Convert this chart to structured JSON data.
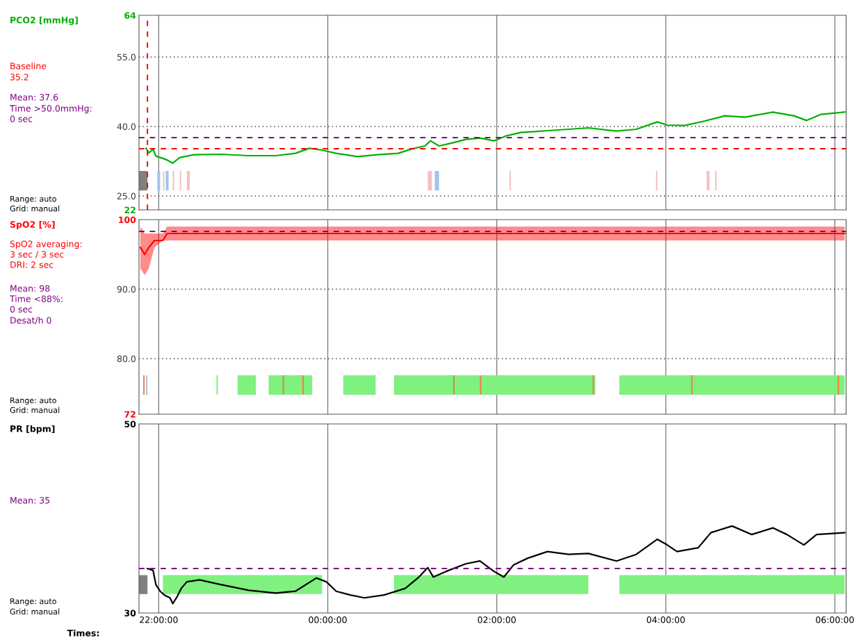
{
  "chart_data": [
    {
      "type": "line",
      "ylabel": "PCO2 [mmHg]",
      "annotations": [
        "Baseline",
        "35.2",
        "Mean: 37.6",
        "Time >50.0mmHg:",
        "0 sec",
        "Range: auto",
        "Grid: manual"
      ],
      "series": [
        {
          "color": "#00b000",
          "x": [
            "2000-01-01T21:51",
            "2000-01-01T21:53",
            "2000-01-01T21:56",
            "2000-01-01T21:58",
            "2000-01-01T22:01",
            "2000-01-01T22:05",
            "2000-01-01T22:10",
            "2000-01-01T22:15",
            "2000-01-01T22:25",
            "2000-01-01T22:44",
            "2000-01-01T23:04",
            "2000-01-01T23:23",
            "2000-01-01T23:37",
            "2000-01-01T23:47",
            "2000-01-01T23:56",
            "2000-01-02T00:06",
            "2000-01-02T00:21",
            "2000-01-02T00:35",
            "2000-01-02T00:50",
            "2000-01-02T00:59",
            "2000-01-02T01:09",
            "2000-01-02T01:13",
            "2000-01-02T01:19",
            "2000-01-02T01:29",
            "2000-01-02T01:38",
            "2000-01-02T01:48",
            "2000-01-02T01:58",
            "2000-01-02T02:07",
            "2000-01-02T02:17",
            "2000-01-02T02:36",
            "2000-01-02T02:51",
            "2000-01-02T03:05",
            "2000-01-02T03:25",
            "2000-01-02T03:39",
            "2000-01-02T03:54",
            "2000-01-02T04:01",
            "2000-01-02T04:13",
            "2000-01-02T04:28",
            "2000-01-02T04:42",
            "2000-01-02T04:56",
            "2000-01-02T05:16",
            "2000-01-02T05:31",
            "2000-01-02T05:40",
            "2000-01-02T05:50",
            "2000-01-02T06:07"
          ],
          "values": [
            35.3,
            34.3,
            35.1,
            33.6,
            33.3,
            32.9,
            32.1,
            33.3,
            33.9,
            34.0,
            33.7,
            33.7,
            34.2,
            35.3,
            34.9,
            34.2,
            33.5,
            33.9,
            34.2,
            35.1,
            35.8,
            36.9,
            35.8,
            36.5,
            37.2,
            37.5,
            36.9,
            38.0,
            38.7,
            39.1,
            39.4,
            39.7,
            39.0,
            39.4,
            41.0,
            40.3,
            40.2,
            41.2,
            42.3,
            42.0,
            43.1,
            42.3,
            41.3,
            42.6,
            43.1
          ]
        }
      ],
      "xlim": [
        "2000-01-01T21:46",
        "2000-01-02T06:08"
      ],
      "ylim": [
        22,
        64
      ],
      "xticks": [
        {
          "value": "2000-01-01T22:00",
          "label": null
        },
        {
          "value": "2000-01-02T00:00",
          "label": null
        },
        {
          "value": "2000-01-02T02:00",
          "label": null
        },
        {
          "value": "2000-01-02T04:00",
          "label": null
        },
        {
          "value": "2000-01-02T06:00",
          "label": null
        }
      ],
      "yticks": [
        22,
        {
          "value": 25,
          "label": "25.0"
        },
        {
          "value": 40,
          "label": "40.0"
        },
        {
          "value": 55,
          "label": "55.0"
        },
        64
      ],
      "tick_labels": "y",
      "grid": true,
      "ref_lines": [
        {
          "axis": "y",
          "value": 35.2,
          "color": "#ff0000",
          "line_style": "dashed"
        },
        {
          "axis": "y",
          "value": 37.6,
          "color": "#800080",
          "line_style": "dashed"
        },
        {
          "axis": "x",
          "value": "2000-01-01T21:52",
          "color": "#ff0000",
          "line_style": "dashed"
        }
      ],
      "bands": [
        {
          "axis": "x",
          "from": "2000-01-01T21:46",
          "to": "2000-01-01T21:52",
          "color": "#808080"
        },
        {
          "axis": "x",
          "from": "2000-01-01T21:59",
          "to": "2000-01-01T22:01",
          "color": "#a0c4f0"
        },
        {
          "axis": "x",
          "from": "2000-01-01T22:03",
          "to": "2000-01-01T22:04",
          "color": "#f4c0c0"
        },
        {
          "axis": "x",
          "from": "2000-01-01T22:05",
          "to": "2000-01-01T22:07",
          "color": "#a0c4f0"
        },
        {
          "axis": "x",
          "from": "2000-01-01T22:10",
          "to": "2000-01-01T22:11",
          "color": "#f4c0c0"
        },
        {
          "axis": "x",
          "from": "2000-01-01T22:15",
          "to": "2000-01-01T22:16",
          "color": "#f4c0c0"
        },
        {
          "axis": "x",
          "from": "2000-01-01T22:20",
          "to": "2000-01-01T22:22",
          "color": "#f4c0c0"
        },
        {
          "axis": "x",
          "from": "2000-01-02T01:11",
          "to": "2000-01-02T01:14",
          "color": "#f4c0c0"
        },
        {
          "axis": "x",
          "from": "2000-01-02T01:16",
          "to": "2000-01-02T01:19",
          "color": "#a0c4f0"
        },
        {
          "axis": "x",
          "from": "2000-01-02T02:09",
          "to": "2000-01-02T02:10",
          "color": "#f4c0c0"
        },
        {
          "axis": "x",
          "from": "2000-01-02T03:53",
          "to": "2000-01-02T03:54",
          "color": "#f4c0c0"
        },
        {
          "axis": "x",
          "from": "2000-01-02T04:29",
          "to": "2000-01-02T04:31",
          "color": "#f4c0c0"
        },
        {
          "axis": "x",
          "from": "2000-01-02T04:35",
          "to": "2000-01-02T04:36",
          "color": "#f4c0c0"
        }
      ]
    },
    {
      "type": "line",
      "ylabel": "SpO2 [%]",
      "annotations": [
        "SpO2 averaging:",
        "3 sec / 3 sec",
        "DRI: 2 sec",
        "Mean: 98",
        "Time <88%:",
        "0 sec",
        "Desat/h 0",
        "Range: auto",
        "Grid: manual"
      ],
      "series": [
        {
          "color": "#ff0000",
          "x": [
            "2000-01-01T21:47",
            "2000-01-01T21:50",
            "2000-01-01T21:53",
            "2000-01-01T21:57",
            "2000-01-01T22:03",
            "2000-01-01T22:06",
            "2000-01-01T22:18",
            "2000-01-02T00:00",
            "2000-01-02T02:00",
            "2000-01-02T04:00",
            "2000-01-02T06:07"
          ],
          "values": [
            96,
            95,
            96,
            97,
            97,
            98,
            98,
            98,
            98,
            98,
            98
          ],
          "lower": [
            93,
            92,
            93,
            96,
            97,
            97,
            97,
            97,
            97,
            97,
            97
          ],
          "upper": [
            99,
            98,
            98,
            98,
            98,
            99,
            99,
            99,
            99,
            99,
            99
          ]
        }
      ],
      "xlim": [
        "2000-01-01T21:46",
        "2000-01-02T06:08"
      ],
      "ylim": [
        72,
        100
      ],
      "xticks": [
        {
          "value": "2000-01-01T22:00",
          "label": null
        },
        {
          "value": "2000-01-02T00:00",
          "label": null
        },
        {
          "value": "2000-01-02T02:00",
          "label": null
        },
        {
          "value": "2000-01-02T04:00",
          "label": null
        },
        {
          "value": "2000-01-02T06:00",
          "label": null
        }
      ],
      "yticks": [
        72,
        {
          "value": 80,
          "label": "80.0"
        },
        {
          "value": 90,
          "label": "90.0"
        },
        100
      ],
      "tick_labels": "y",
      "grid": true,
      "ref_lines": [
        {
          "axis": "y",
          "value": 98.3,
          "color": "#800080",
          "line_style": "dashed"
        }
      ],
      "bands": [
        {
          "axis": "x",
          "from": "2000-01-01T21:49",
          "to": "2000-01-01T21:50",
          "color": "#f08040"
        },
        {
          "axis": "x",
          "from": "2000-01-01T21:51",
          "to": "2000-01-01T21:52",
          "color": "#a0c4f0"
        },
        {
          "axis": "x",
          "from": "2000-01-01T22:41",
          "to": "2000-01-01T22:42",
          "color": "#80f080"
        },
        {
          "axis": "x",
          "from": "2000-01-01T22:56",
          "to": "2000-01-01T23:09",
          "color": "#80f080"
        },
        {
          "axis": "x",
          "from": "2000-01-01T23:18",
          "to": "2000-01-01T23:49",
          "color": "#80f080"
        },
        {
          "axis": "x",
          "from": "2000-01-02T00:11",
          "to": "2000-01-02T00:34",
          "color": "#80f080"
        },
        {
          "axis": "x",
          "from": "2000-01-02T00:47",
          "to": "2000-01-02T03:10",
          "color": "#80f080"
        },
        {
          "axis": "x",
          "from": "2000-01-02T03:27",
          "to": "2000-01-02T06:07",
          "color": "#80f080"
        },
        {
          "axis": "x",
          "from": "2000-01-01T23:28",
          "to": "2000-01-01T23:29",
          "color": "#f08040"
        },
        {
          "axis": "x",
          "from": "2000-01-01T23:42",
          "to": "2000-01-01T23:43",
          "color": "#f08040"
        },
        {
          "axis": "x",
          "from": "2000-01-02T01:29",
          "to": "2000-01-02T01:30",
          "color": "#f08040"
        },
        {
          "axis": "x",
          "from": "2000-01-02T01:48",
          "to": "2000-01-02T01:49",
          "color": "#f08040"
        },
        {
          "axis": "x",
          "from": "2000-01-02T03:08",
          "to": "2000-01-02T03:09",
          "color": "#f08040"
        },
        {
          "axis": "x",
          "from": "2000-01-02T04:18",
          "to": "2000-01-02T04:19",
          "color": "#f08040"
        },
        {
          "axis": "x",
          "from": "2000-01-02T06:02",
          "to": "2000-01-02T06:03",
          "color": "#f08040"
        }
      ]
    },
    {
      "type": "line",
      "ylabel": "PR [bpm]",
      "xlabel": "Times:",
      "annotations": [
        "Mean: 35",
        "Range: auto",
        "Grid: manual"
      ],
      "series": [
        {
          "color": "#000000",
          "x": [
            "2000-01-01T21:52",
            "2000-01-01T21:56",
            "2000-01-01T21:58",
            "2000-01-01T22:01",
            "2000-01-01T22:04",
            "2000-01-01T22:08",
            "2000-01-01T22:10",
            "2000-01-01T22:13",
            "2000-01-01T22:16",
            "2000-01-01T22:20",
            "2000-01-01T22:29",
            "2000-01-01T22:44",
            "2000-01-01T23:04",
            "2000-01-01T23:23",
            "2000-01-01T23:37",
            "2000-01-01T23:52",
            "2000-01-01T23:59",
            "2000-01-02T00:06",
            "2000-01-02T00:16",
            "2000-01-02T00:26",
            "2000-01-02T00:40",
            "2000-01-02T00:55",
            "2000-01-02T01:04",
            "2000-01-02T01:11",
            "2000-01-02T01:15",
            "2000-01-02T01:24",
            "2000-01-02T01:38",
            "2000-01-02T01:48",
            "2000-01-02T01:58",
            "2000-01-02T02:05",
            "2000-01-02T02:12",
            "2000-01-02T02:22",
            "2000-01-02T02:36",
            "2000-01-02T02:51",
            "2000-01-02T03:05",
            "2000-01-02T03:25",
            "2000-01-02T03:39",
            "2000-01-02T03:54",
            "2000-01-02T04:01",
            "2000-01-02T04:08",
            "2000-01-02T04:23",
            "2000-01-02T04:32",
            "2000-01-02T04:47",
            "2000-01-02T05:01",
            "2000-01-02T05:16",
            "2000-01-02T05:26",
            "2000-01-02T05:38",
            "2000-01-02T05:47",
            "2000-01-02T06:07"
          ],
          "values": [
            34.7,
            34.5,
            33.0,
            32.3,
            31.9,
            31.6,
            31.0,
            31.7,
            32.6,
            33.3,
            33.5,
            33.0,
            32.4,
            32.1,
            32.3,
            33.7,
            33.3,
            32.3,
            31.9,
            31.6,
            31.9,
            32.6,
            33.7,
            34.8,
            33.8,
            34.4,
            35.2,
            35.5,
            34.4,
            33.8,
            35.1,
            35.8,
            36.5,
            36.2,
            36.3,
            35.5,
            36.2,
            37.8,
            37.2,
            36.5,
            36.9,
            38.5,
            39.2,
            38.3,
            39.0,
            38.3,
            37.2,
            38.3,
            38.5
          ]
        }
      ],
      "xlim": [
        "2000-01-01T21:46",
        "2000-01-02T06:08"
      ],
      "ylim": [
        30,
        50
      ],
      "xticks": [
        {
          "value": "2000-01-01T22:00",
          "label": "22:00:00"
        },
        {
          "value": "2000-01-02T00:00",
          "label": "00:00:00"
        },
        {
          "value": "2000-01-02T02:00",
          "label": "02:00:00"
        },
        {
          "value": "2000-01-02T04:00",
          "label": "04:00:00"
        },
        {
          "value": "2000-01-02T06:00",
          "label": "06:00:00"
        }
      ],
      "yticks": [
        30,
        50
      ],
      "grid": true,
      "ref_lines": [
        {
          "axis": "y",
          "value": 34.7,
          "color": "#800080",
          "line_style": "dashed"
        }
      ],
      "bands": [
        {
          "axis": "x",
          "from": "2000-01-01T21:46",
          "to": "2000-01-01T21:52",
          "color": "#808080"
        },
        {
          "axis": "x",
          "from": "2000-01-01T22:03",
          "to": "2000-01-01T23:56",
          "color": "#80f080"
        },
        {
          "axis": "x",
          "from": "2000-01-02T00:47",
          "to": "2000-01-02T03:05",
          "color": "#80f080"
        },
        {
          "axis": "x",
          "from": "2000-01-02T03:27",
          "to": "2000-01-02T06:07",
          "color": "#80f080"
        }
      ]
    }
  ]
}
